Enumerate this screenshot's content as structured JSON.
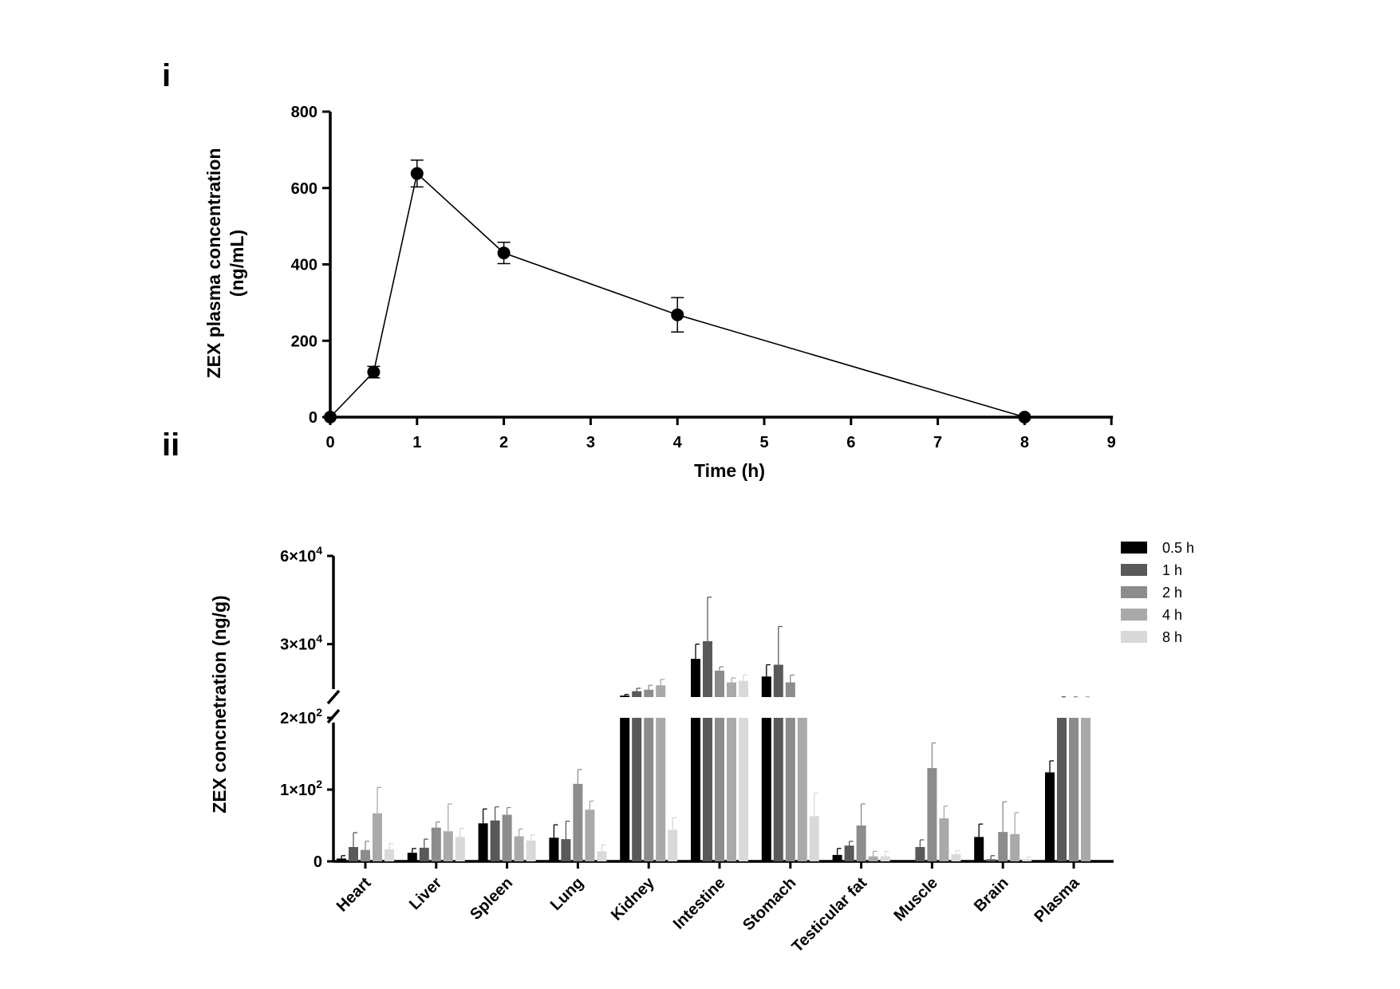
{
  "panels": {
    "top_label": "i",
    "bottom_label": "ii"
  },
  "chart_data": [
    {
      "type": "line",
      "xlabel": "Time (h)",
      "ylabel_line1": "ZEX plasma concentration",
      "ylabel_line2": "(ng/mL)",
      "xlim": [
        0,
        9
      ],
      "ylim": [
        0,
        800
      ],
      "x_ticks": [
        "0",
        "1",
        "2",
        "3",
        "4",
        "5",
        "6",
        "7",
        "8",
        "9"
      ],
      "y_ticks": [
        "0",
        "200",
        "400",
        "600",
        "800"
      ],
      "series": [
        {
          "x": [
            0,
            0.5,
            1,
            2,
            4,
            8
          ],
          "y": [
            0,
            118,
            638,
            430,
            268,
            0
          ],
          "error": [
            0,
            15,
            35,
            28,
            45,
            0
          ]
        }
      ]
    },
    {
      "type": "bar",
      "ylabel": "ZEX concnetration (ng/g)",
      "y_axis": "broken",
      "y_ticks": [
        {
          "mantissa": "0",
          "exponent": ""
        },
        {
          "mantissa": "1×10",
          "exponent": "2"
        },
        {
          "mantissa": "2×10",
          "exponent": "2"
        },
        {
          "mantissa": "3×10",
          "exponent": "4"
        },
        {
          "mantissa": "6×10",
          "exponent": "4"
        }
      ],
      "lower_segment_range": [
        0,
        200
      ],
      "upper_segment_range": [
        12000,
        60000
      ],
      "categories": [
        "Heart",
        "Liver",
        "Spleen",
        "Lung",
        "Kidney",
        "Intestine",
        "Stomach",
        "Testicular fat",
        "Muscle",
        "Brain",
        "Plasma"
      ],
      "legend_position": "top-right",
      "series": [
        {
          "name": "0.5 h",
          "color": "#000000",
          "values": [
            4,
            12,
            53,
            33,
            12500,
            25000,
            19000,
            9,
            0,
            34,
            124
          ],
          "errors": [
            4,
            6,
            20,
            18,
            400,
            5000,
            4000,
            9,
            0,
            18,
            16
          ]
        },
        {
          "name": "1 h",
          "color": "#595959",
          "values": [
            20,
            19,
            57,
            31,
            14000,
            31000,
            23000,
            22,
            20,
            3,
            12000
          ],
          "errors": [
            20,
            12,
            19,
            25,
            1000,
            15000,
            13000,
            6,
            10,
            5,
            100
          ]
        },
        {
          "name": "2 h",
          "color": "#8c8c8c",
          "values": [
            16,
            47,
            65,
            108,
            14500,
            21000,
            17000,
            50,
            130,
            41,
            12000
          ],
          "errors": [
            12,
            8,
            10,
            20,
            1500,
            1300,
            2500,
            30,
            35,
            42,
            100
          ]
        },
        {
          "name": "4 h",
          "color": "#a9a9a9",
          "values": [
            67,
            42,
            35,
            72,
            16000,
            17000,
            12000,
            7,
            60,
            38,
            12000
          ],
          "errors": [
            36,
            38,
            10,
            12,
            2000,
            1500,
            0,
            7,
            17,
            30,
            100
          ]
        },
        {
          "name": "8 h",
          "color": "#d9d9d9",
          "values": [
            17,
            34,
            29,
            14,
            44,
            17500,
            63,
            7,
            10,
            3,
            0
          ],
          "errors": [
            8,
            12,
            8,
            9,
            17,
            2000,
            32,
            7,
            5,
            3,
            0
          ]
        }
      ]
    }
  ]
}
